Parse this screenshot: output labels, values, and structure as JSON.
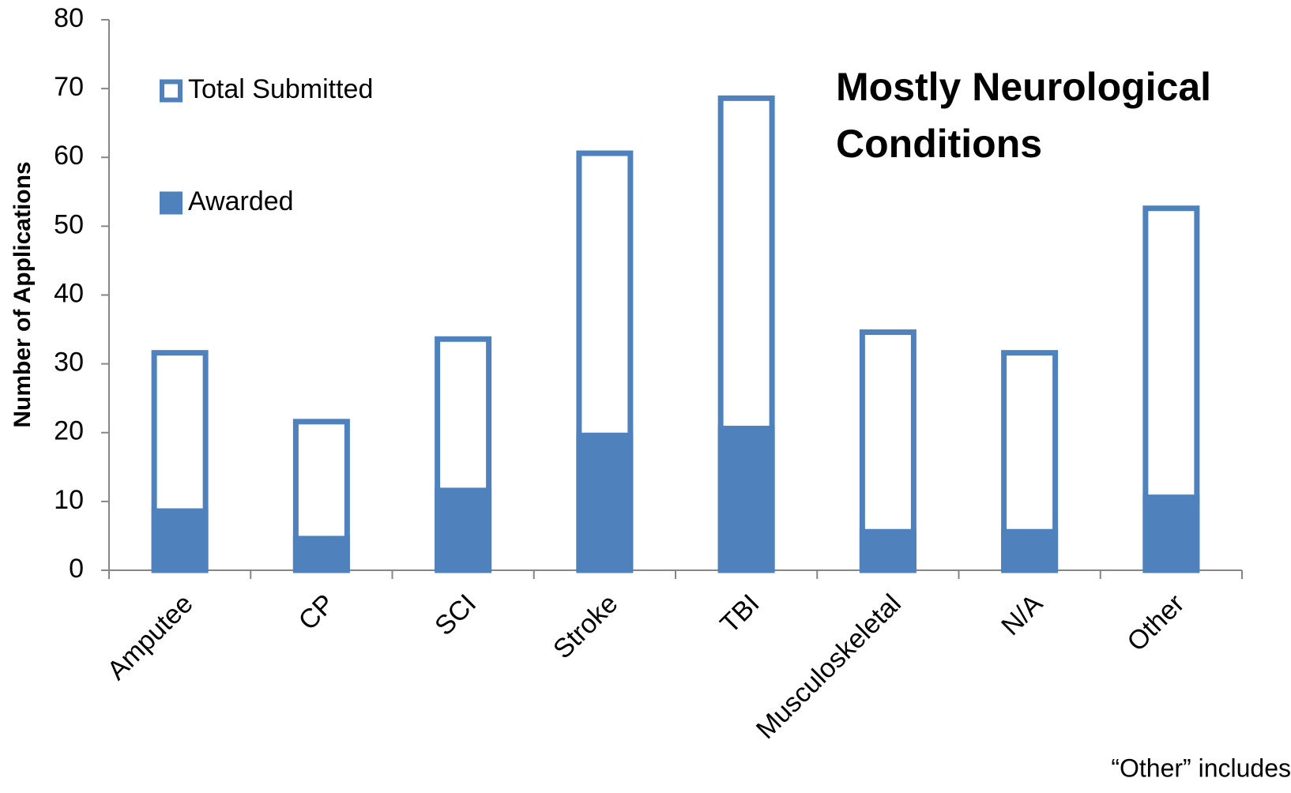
{
  "chart_data": {
    "type": "bar",
    "y_label": "Number of Applications",
    "categories": [
      "Amputee",
      "CP",
      "SCI",
      "Stroke",
      "TBI",
      "Musculoskeletal",
      "N/A",
      "Other"
    ],
    "series": [
      {
        "name": "Total Submitted",
        "color": "#4f81bd",
        "style": "outline",
        "values": [
          32,
          22,
          34,
          61,
          69,
          35,
          32,
          53
        ]
      },
      {
        "name": "Awarded",
        "color": "#4f81bd",
        "style": "filled",
        "values": [
          9,
          5,
          12,
          20,
          21,
          6,
          6,
          11
        ]
      }
    ],
    "ylim": [
      0,
      80
    ],
    "yticks": [
      0,
      10,
      20,
      30,
      40,
      50,
      60,
      70,
      80
    ],
    "grid": false,
    "legend": "upper left",
    "annotation_lines": [
      "Mostly Neurological",
      "Conditions"
    ],
    "annotation_color": "#0000ee",
    "footnote": "“Other” includes"
  }
}
